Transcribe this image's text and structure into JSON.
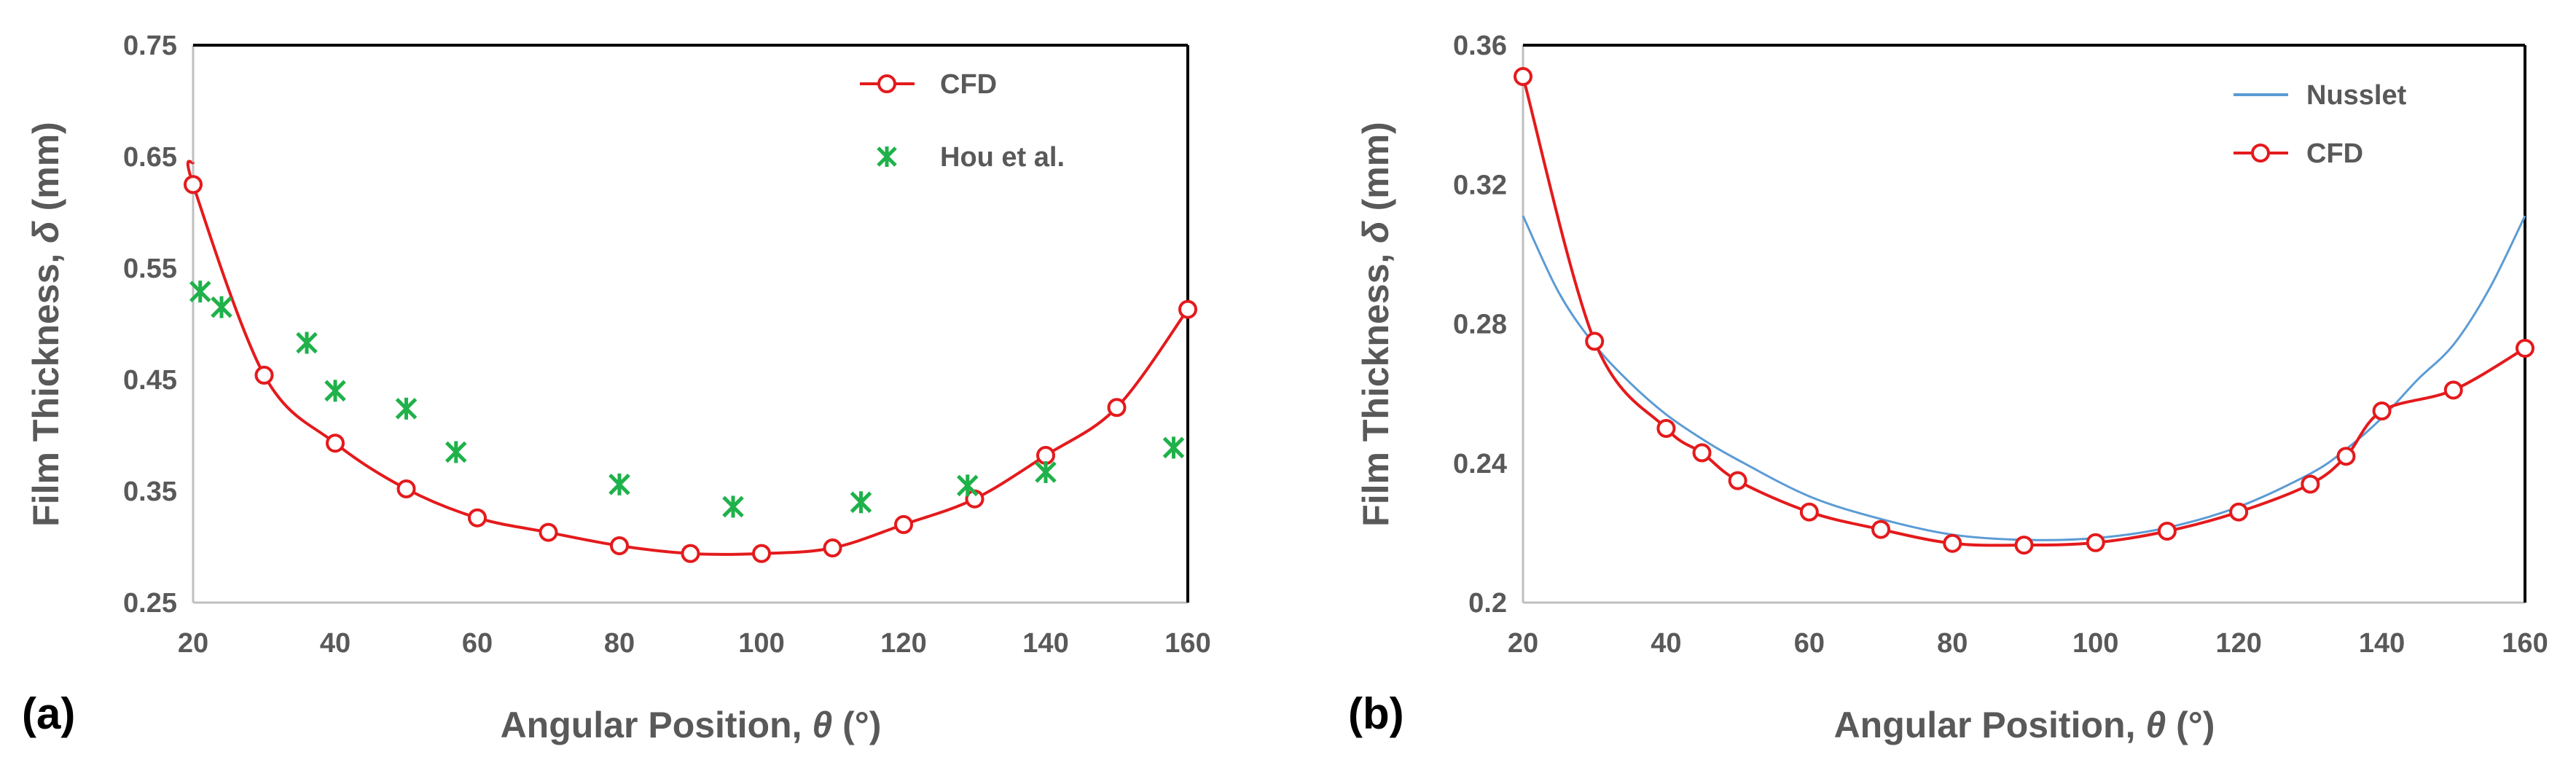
{
  "colors": {
    "cfd": "#e41a1c",
    "hou": "#1fb14a",
    "nusslet": "#5b9bd5",
    "text": "#595959",
    "axis": "#000000"
  },
  "chart_data": [
    {
      "panel_label": "(a)",
      "type": "line",
      "xlabel": {
        "main": "Angular Position, ",
        "symbol": "θ",
        "unit": " (°)"
      },
      "ylabel": {
        "main": "Film Thickness, ",
        "symbol": "δ",
        "unit": " (mm)"
      },
      "xlim": [
        20,
        160
      ],
      "ylim": [
        0.25,
        0.75
      ],
      "xticks": [
        "20",
        "40",
        "60",
        "80",
        "100",
        "120",
        "140",
        "160"
      ],
      "yticks": [
        "0.25",
        "0.35",
        "0.45",
        "0.55",
        "0.65",
        "0.75"
      ],
      "legend_position": "top-right",
      "series": [
        {
          "name": "CFD",
          "style": "line-circle",
          "color": "#e41a1c",
          "x": [
            20,
            30,
            40,
            50,
            60,
            70,
            80,
            90,
            100,
            110,
            120,
            130,
            140,
            150,
            160
          ],
          "y": [
            0.625,
            0.454,
            0.393,
            0.352,
            0.326,
            0.313,
            0.301,
            0.294,
            0.294,
            0.299,
            0.32,
            0.343,
            0.382,
            0.425,
            0.513
          ],
          "curve_start": [
            20,
            0.645
          ]
        },
        {
          "name": "Hou et al.",
          "style": "marker-asterisk",
          "color": "#1fb14a",
          "x": [
            21,
            24,
            36,
            40,
            50,
            57,
            80,
            96,
            114,
            129,
            140,
            158
          ],
          "y": [
            0.529,
            0.515,
            0.483,
            0.44,
            0.424,
            0.385,
            0.356,
            0.336,
            0.34,
            0.355,
            0.367,
            0.389
          ]
        }
      ]
    },
    {
      "panel_label": "(b)",
      "type": "line",
      "xlabel": {
        "main": "Angular Position, ",
        "symbol": "θ",
        "unit": " (°)"
      },
      "ylabel": {
        "main": "Film Thickness, ",
        "symbol": "δ",
        "unit": " (mm)"
      },
      "xlim": [
        20,
        160
      ],
      "ylim": [
        0.2,
        0.36
      ],
      "xticks": [
        "20",
        "40",
        "60",
        "80",
        "100",
        "120",
        "140",
        "160"
      ],
      "yticks": [
        "0.2",
        "0.24",
        "0.28",
        "0.32",
        "0.36"
      ],
      "legend_position": "top-right",
      "series": [
        {
          "name": "Nusslet",
          "style": "line",
          "color": "#5b9bd5",
          "x": [
            20,
            25,
            30,
            35,
            40,
            45,
            50,
            60,
            70,
            80,
            90,
            100,
            110,
            120,
            130,
            135,
            140,
            145,
            150,
            155,
            160
          ],
          "y": [
            0.311,
            0.289,
            0.274,
            0.263,
            0.254,
            0.247,
            0.241,
            0.2305,
            0.224,
            0.2195,
            0.218,
            0.2185,
            0.2215,
            0.2275,
            0.237,
            0.244,
            0.253,
            0.264,
            0.274,
            0.29,
            0.311
          ]
        },
        {
          "name": "CFD",
          "style": "line-circle",
          "color": "#e41a1c",
          "x": [
            20,
            30,
            40,
            45,
            50,
            60,
            70,
            80,
            90,
            100,
            110,
            120,
            130,
            135,
            140,
            150,
            160
          ],
          "y": [
            0.351,
            0.275,
            0.25,
            0.243,
            0.235,
            0.226,
            0.221,
            0.217,
            0.2165,
            0.2172,
            0.2205,
            0.226,
            0.234,
            0.242,
            0.255,
            0.261,
            0.273
          ]
        }
      ]
    }
  ]
}
